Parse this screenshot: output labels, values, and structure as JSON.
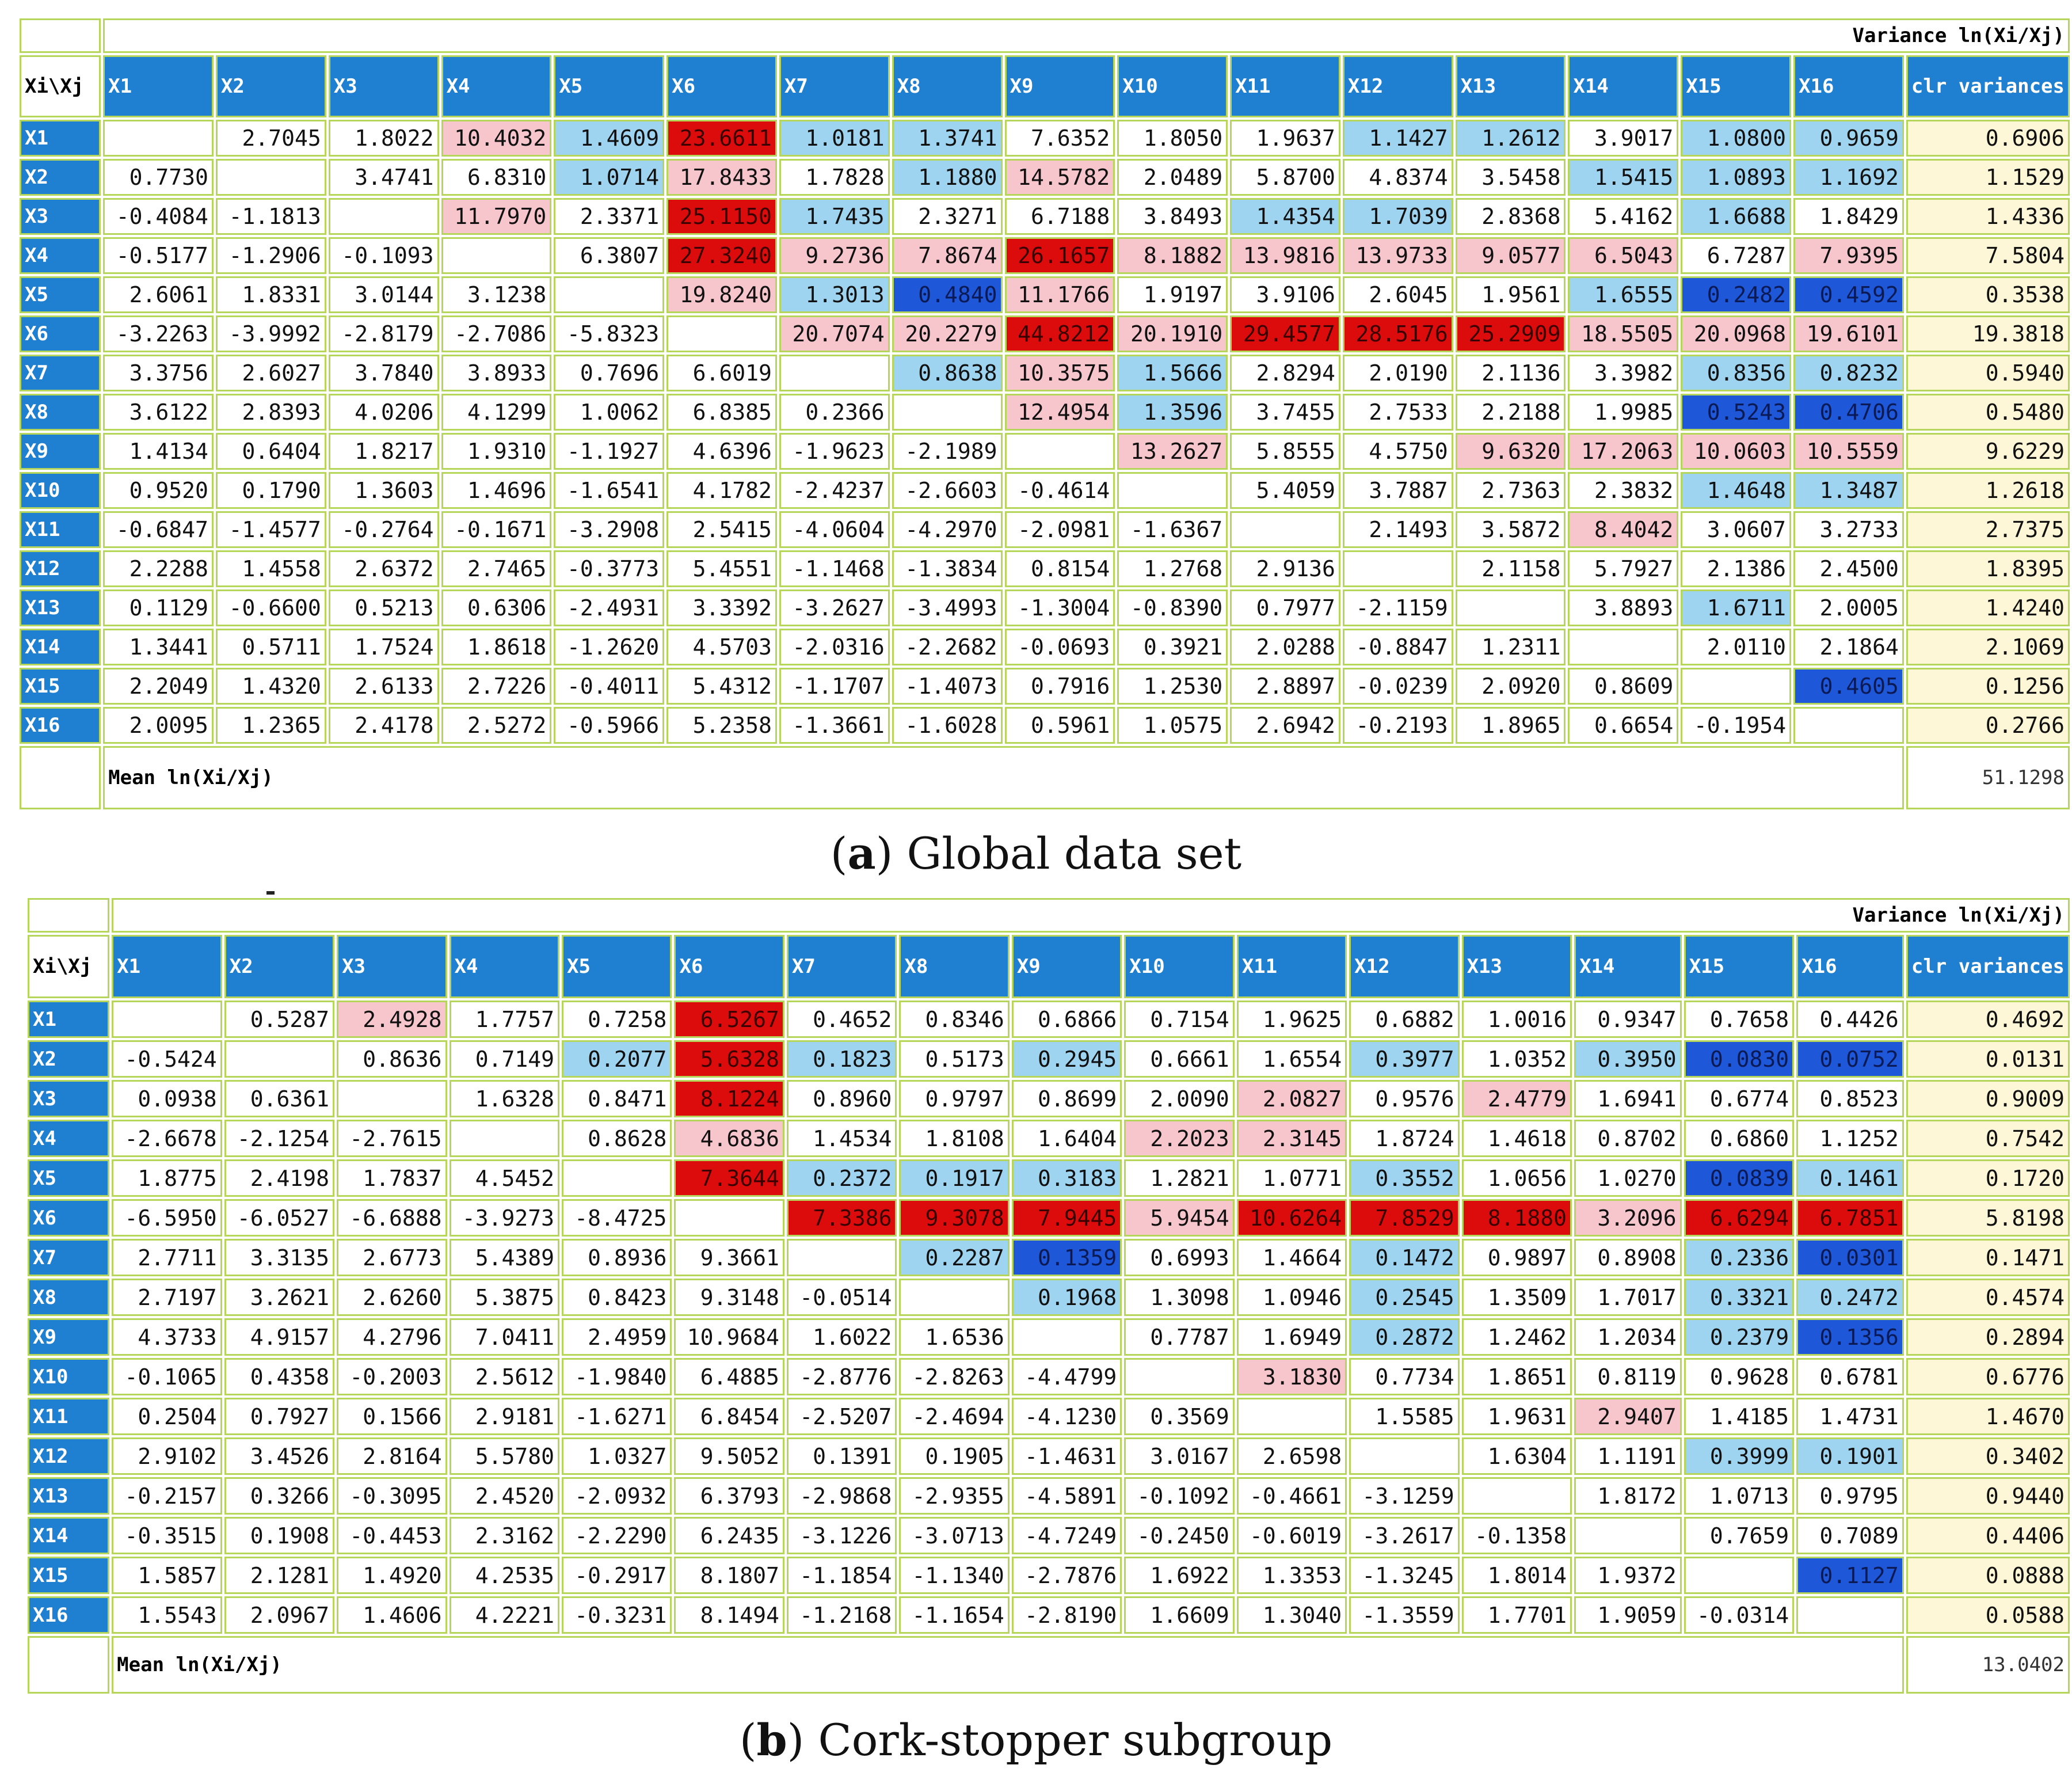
{
  "colors": {
    "header_blue": "#1f7fd0",
    "grid_green": "#b5d65a",
    "clr_yellow": "#fdf7d7",
    "pink": "#f6c6cc",
    "red": "#dd0c0c",
    "lightblue": "#9fd4f0",
    "blue": "#1e58d8"
  },
  "panel_a": {
    "caption_letter": "a",
    "caption_text": "Global data set",
    "title": "Variance ln(Xi/Xj)",
    "corner": "Xi\\Xj",
    "columns": [
      "X1",
      "X2",
      "X3",
      "X4",
      "X5",
      "X6",
      "X7",
      "X8",
      "X9",
      "X10",
      "X11",
      "X12",
      "X13",
      "X14",
      "X15",
      "X16"
    ],
    "clr_header": "clr variances",
    "mean_label": "Mean ln(Xi/Xj)",
    "total": "51.1298",
    "rows": [
      {
        "label": "X1",
        "cells": [
          "",
          "2.7045",
          "1.8022",
          "10.4032",
          "1.4609",
          "23.6611",
          "1.0181",
          "1.3741",
          "7.6352",
          "1.8050",
          "1.9637",
          "1.1427",
          "1.2612",
          "3.9017",
          "1.0800",
          "0.9659"
        ],
        "clr": "0.6906"
      },
      {
        "label": "X2",
        "cells": [
          "0.7730",
          "",
          "3.4741",
          "6.8310",
          "1.0714",
          "17.8433",
          "1.7828",
          "1.1880",
          "14.5782",
          "2.0489",
          "5.8700",
          "4.8374",
          "3.5458",
          "1.5415",
          "1.0893",
          "1.1692"
        ],
        "clr": "1.1529"
      },
      {
        "label": "X3",
        "cells": [
          "-0.4084",
          "-1.1813",
          "",
          "11.7970",
          "2.3371",
          "25.1150",
          "1.7435",
          "2.3271",
          "6.7188",
          "3.8493",
          "1.4354",
          "1.7039",
          "2.8368",
          "5.4162",
          "1.6688",
          "1.8429"
        ],
        "clr": "1.4336"
      },
      {
        "label": "X4",
        "cells": [
          "-0.5177",
          "-1.2906",
          "-0.1093",
          "",
          "6.3807",
          "27.3240",
          "9.2736",
          "7.8674",
          "26.1657",
          "8.1882",
          "13.9816",
          "13.9733",
          "9.0577",
          "6.5043",
          "6.7287",
          "7.9395"
        ],
        "clr": "7.5804"
      },
      {
        "label": "X5",
        "cells": [
          "2.6061",
          "1.8331",
          "3.0144",
          "3.1238",
          "",
          "19.8240",
          "1.3013",
          "0.4840",
          "11.1766",
          "1.9197",
          "3.9106",
          "2.6045",
          "1.9561",
          "1.6555",
          "0.2482",
          "0.4592"
        ],
        "clr": "0.3538"
      },
      {
        "label": "X6",
        "cells": [
          "-3.2263",
          "-3.9992",
          "-2.8179",
          "-2.7086",
          "-5.8323",
          "",
          "20.7074",
          "20.2279",
          "44.8212",
          "20.1910",
          "29.4577",
          "28.5176",
          "25.2909",
          "18.5505",
          "20.0968",
          "19.6101"
        ],
        "clr": "19.3818"
      },
      {
        "label": "X7",
        "cells": [
          "3.3756",
          "2.6027",
          "3.7840",
          "3.8933",
          "0.7696",
          "6.6019",
          "",
          "0.8638",
          "10.3575",
          "1.5666",
          "2.8294",
          "2.0190",
          "2.1136",
          "3.3982",
          "0.8356",
          "0.8232"
        ],
        "clr": "0.5940"
      },
      {
        "label": "X8",
        "cells": [
          "3.6122",
          "2.8393",
          "4.0206",
          "4.1299",
          "1.0062",
          "6.8385",
          "0.2366",
          "",
          "12.4954",
          "1.3596",
          "3.7455",
          "2.7533",
          "2.2188",
          "1.9985",
          "0.5243",
          "0.4706"
        ],
        "clr": "0.5480"
      },
      {
        "label": "X9",
        "cells": [
          "1.4134",
          "0.6404",
          "1.8217",
          "1.9310",
          "-1.1927",
          "4.6396",
          "-1.9623",
          "-2.1989",
          "",
          "13.2627",
          "5.8555",
          "4.5750",
          "9.6320",
          "17.2063",
          "10.0603",
          "10.5559"
        ],
        "clr": "9.6229"
      },
      {
        "label": "X10",
        "cells": [
          "0.9520",
          "0.1790",
          "1.3603",
          "1.4696",
          "-1.6541",
          "4.1782",
          "-2.4237",
          "-2.6603",
          "-0.4614",
          "",
          "5.4059",
          "3.7887",
          "2.7363",
          "2.3832",
          "1.4648",
          "1.3487"
        ],
        "clr": "1.2618"
      },
      {
        "label": "X11",
        "cells": [
          "-0.6847",
          "-1.4577",
          "-0.2764",
          "-0.1671",
          "-3.2908",
          "2.5415",
          "-4.0604",
          "-4.2970",
          "-2.0981",
          "-1.6367",
          "",
          "2.1493",
          "3.5872",
          "8.4042",
          "3.0607",
          "3.2733"
        ],
        "clr": "2.7375"
      },
      {
        "label": "X12",
        "cells": [
          "2.2288",
          "1.4558",
          "2.6372",
          "2.7465",
          "-0.3773",
          "5.4551",
          "-1.1468",
          "-1.3834",
          "0.8154",
          "1.2768",
          "2.9136",
          "",
          "2.1158",
          "5.7927",
          "2.1386",
          "2.4500"
        ],
        "clr": "1.8395"
      },
      {
        "label": "X13",
        "cells": [
          "0.1129",
          "-0.6600",
          "0.5213",
          "0.6306",
          "-2.4931",
          "3.3392",
          "-3.2627",
          "-3.4993",
          "-1.3004",
          "-0.8390",
          "0.7977",
          "-2.1159",
          "",
          "3.8893",
          "1.6711",
          "2.0005"
        ],
        "clr": "1.4240"
      },
      {
        "label": "X14",
        "cells": [
          "1.3441",
          "0.5711",
          "1.7524",
          "1.8618",
          "-1.2620",
          "4.5703",
          "-2.0316",
          "-2.2682",
          "-0.0693",
          "0.3921",
          "2.0288",
          "-0.8847",
          "1.2311",
          "",
          "2.0110",
          "2.1864"
        ],
        "clr": "2.1069"
      },
      {
        "label": "X15",
        "cells": [
          "2.2049",
          "1.4320",
          "2.6133",
          "2.7226",
          "-0.4011",
          "5.4312",
          "-1.1707",
          "-1.4073",
          "0.7916",
          "1.2530",
          "2.8897",
          "-0.0239",
          "2.0920",
          "0.8609",
          "",
          "0.4605"
        ],
        "clr": "0.1256"
      },
      {
        "label": "X16",
        "cells": [
          "2.0095",
          "1.2365",
          "2.4178",
          "2.5272",
          "-0.5966",
          "5.2358",
          "-1.3661",
          "-1.6028",
          "0.5961",
          "1.0575",
          "2.6942",
          "-0.2193",
          "1.8965",
          "0.6654",
          "-0.1954",
          ""
        ],
        "clr": "0.2766"
      }
    ]
  },
  "panel_b": {
    "caption_letter": "b",
    "caption_text": "Cork-stopper subgroup",
    "title": "Variance ln(Xi/Xj)",
    "corner": "Xi\\Xj",
    "columns": [
      "X1",
      "X2",
      "X3",
      "X4",
      "X5",
      "X6",
      "X7",
      "X8",
      "X9",
      "X10",
      "X11",
      "X12",
      "X13",
      "X14",
      "X15",
      "X16"
    ],
    "clr_header": "clr variances",
    "mean_label": "Mean ln(Xi/Xj)",
    "total": "13.0402",
    "rows": [
      {
        "label": "X1",
        "cells": [
          "",
          "0.5287",
          "2.4928",
          "1.7757",
          "0.7258",
          "6.5267",
          "0.4652",
          "0.8346",
          "0.6866",
          "0.7154",
          "1.9625",
          "0.6882",
          "1.0016",
          "0.9347",
          "0.7658",
          "0.4426"
        ],
        "clr": "0.4692"
      },
      {
        "label": "X2",
        "cells": [
          "-0.5424",
          "",
          "0.8636",
          "0.7149",
          "0.2077",
          "5.6328",
          "0.1823",
          "0.5173",
          "0.2945",
          "0.6661",
          "1.6554",
          "0.3977",
          "1.0352",
          "0.3950",
          "0.0830",
          "0.0752"
        ],
        "clr": "0.0131"
      },
      {
        "label": "X3",
        "cells": [
          "0.0938",
          "0.6361",
          "",
          "1.6328",
          "0.8471",
          "8.1224",
          "0.8960",
          "0.9797",
          "0.8699",
          "2.0090",
          "2.0827",
          "0.9576",
          "2.4779",
          "1.6941",
          "0.6774",
          "0.8523"
        ],
        "clr": "0.9009"
      },
      {
        "label": "X4",
        "cells": [
          "-2.6678",
          "-2.1254",
          "-2.7615",
          "",
          "0.8628",
          "4.6836",
          "1.4534",
          "1.8108",
          "1.6404",
          "2.2023",
          "2.3145",
          "1.8724",
          "1.4618",
          "0.8702",
          "0.6860",
          "1.1252"
        ],
        "clr": "0.7542"
      },
      {
        "label": "X5",
        "cells": [
          "1.8775",
          "2.4198",
          "1.7837",
          "4.5452",
          "",
          "7.3644",
          "0.2372",
          "0.1917",
          "0.3183",
          "1.2821",
          "1.0771",
          "0.3552",
          "1.0656",
          "1.0270",
          "0.0839",
          "0.1461"
        ],
        "clr": "0.1720"
      },
      {
        "label": "X6",
        "cells": [
          "-6.5950",
          "-6.0527",
          "-6.6888",
          "-3.9273",
          "-8.4725",
          "",
          "7.3386",
          "9.3078",
          "7.9445",
          "5.9454",
          "10.6264",
          "7.8529",
          "8.1880",
          "3.2096",
          "6.6294",
          "6.7851"
        ],
        "clr": "5.8198"
      },
      {
        "label": "X7",
        "cells": [
          "2.7711",
          "3.3135",
          "2.6773",
          "5.4389",
          "0.8936",
          "9.3661",
          "",
          "0.2287",
          "0.1359",
          "0.6993",
          "1.4664",
          "0.1472",
          "0.9897",
          "0.8908",
          "0.2336",
          "0.0301"
        ],
        "clr": "0.1471"
      },
      {
        "label": "X8",
        "cells": [
          "2.7197",
          "3.2621",
          "2.6260",
          "5.3875",
          "0.8423",
          "9.3148",
          "-0.0514",
          "",
          "0.1968",
          "1.3098",
          "1.0946",
          "0.2545",
          "1.3509",
          "1.7017",
          "0.3321",
          "0.2472"
        ],
        "clr": "0.4574"
      },
      {
        "label": "X9",
        "cells": [
          "4.3733",
          "4.9157",
          "4.2796",
          "7.0411",
          "2.4959",
          "10.9684",
          "1.6022",
          "1.6536",
          "",
          "0.7787",
          "1.6949",
          "0.2872",
          "1.2462",
          "1.2034",
          "0.2379",
          "0.1356"
        ],
        "clr": "0.2894"
      },
      {
        "label": "X10",
        "cells": [
          "-0.1065",
          "0.4358",
          "-0.2003",
          "2.5612",
          "-1.9840",
          "6.4885",
          "-2.8776",
          "-2.8263",
          "-4.4799",
          "",
          "3.1830",
          "0.7734",
          "1.8651",
          "0.8119",
          "0.9628",
          "0.6781"
        ],
        "clr": "0.6776"
      },
      {
        "label": "X11",
        "cells": [
          "0.2504",
          "0.7927",
          "0.1566",
          "2.9181",
          "-1.6271",
          "6.8454",
          "-2.5207",
          "-2.4694",
          "-4.1230",
          "0.3569",
          "",
          "1.5585",
          "1.9631",
          "2.9407",
          "1.4185",
          "1.4731"
        ],
        "clr": "1.4670"
      },
      {
        "label": "X12",
        "cells": [
          "2.9102",
          "3.4526",
          "2.8164",
          "5.5780",
          "1.0327",
          "9.5052",
          "0.1391",
          "0.1905",
          "-1.4631",
          "3.0167",
          "2.6598",
          "",
          "1.6304",
          "1.1191",
          "0.3999",
          "0.1901"
        ],
        "clr": "0.3402"
      },
      {
        "label": "X13",
        "cells": [
          "-0.2157",
          "0.3266",
          "-0.3095",
          "2.4520",
          "-2.0932",
          "6.3793",
          "-2.9868",
          "-2.9355",
          "-4.5891",
          "-0.1092",
          "-0.4661",
          "-3.1259",
          "",
          "1.8172",
          "1.0713",
          "0.9795"
        ],
        "clr": "0.9440"
      },
      {
        "label": "X14",
        "cells": [
          "-0.3515",
          "0.1908",
          "-0.4453",
          "2.3162",
          "-2.2290",
          "6.2435",
          "-3.1226",
          "-3.0713",
          "-4.7249",
          "-0.2450",
          "-0.6019",
          "-3.2617",
          "-0.1358",
          "",
          "0.7659",
          "0.7089"
        ],
        "clr": "0.4406"
      },
      {
        "label": "X15",
        "cells": [
          "1.5857",
          "2.1281",
          "1.4920",
          "4.2535",
          "-0.2917",
          "8.1807",
          "-1.1854",
          "-1.1340",
          "-2.7876",
          "1.6922",
          "1.3353",
          "-1.3245",
          "1.8014",
          "1.9372",
          "",
          "0.1127"
        ],
        "clr": "0.0888"
      },
      {
        "label": "X16",
        "cells": [
          "1.5543",
          "2.0967",
          "1.4606",
          "4.2221",
          "-0.3231",
          "8.1494",
          "-1.2168",
          "-1.1654",
          "-2.8190",
          "1.6609",
          "1.3040",
          "-1.3559",
          "1.7701",
          "1.9059",
          "-0.0314",
          ""
        ],
        "clr": "0.0588"
      }
    ]
  }
}
